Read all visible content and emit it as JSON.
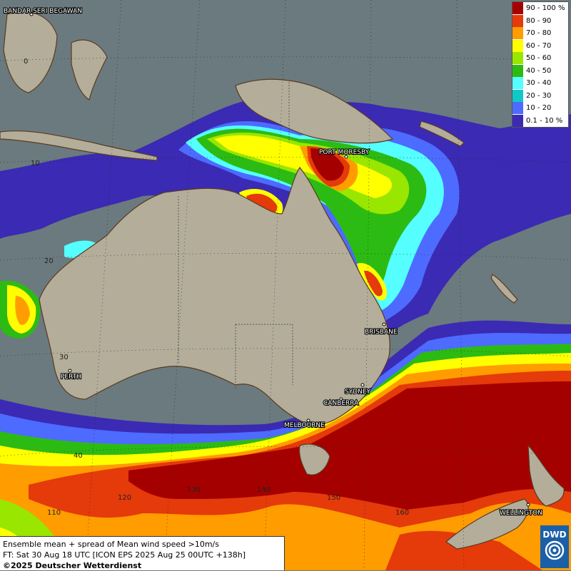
{
  "cities": [
    {
      "name": "BANDAR SERI BEGAWAN"
    },
    {
      "name": "PORT MORESBY"
    },
    {
      "name": "BRISBANE"
    },
    {
      "name": "SYDNEY"
    },
    {
      "name": "CANBERRA"
    },
    {
      "name": "MELBOURNE"
    },
    {
      "name": "PERTH"
    },
    {
      "name": "WELLINGTON"
    }
  ],
  "lat_labels": [
    "0",
    "10",
    "20",
    "30",
    "40"
  ],
  "lon_labels": [
    "110",
    "120",
    "130",
    "140",
    "150",
    "160"
  ],
  "legend": {
    "items": [
      {
        "label": "90 - 100 %",
        "color": "#a50000"
      },
      {
        "label": "80 - 90",
        "color": "#e53a0a"
      },
      {
        "label": "70 - 80",
        "color": "#ff9c00"
      },
      {
        "label": "60 - 70",
        "color": "#ffff00"
      },
      {
        "label": "50 - 60",
        "color": "#99e600"
      },
      {
        "label": "40 - 50",
        "color": "#2cbb13"
      },
      {
        "label": "30 - 40",
        "color": "#55ffff"
      },
      {
        "label": "20 - 30",
        "color": "#10c8c8"
      },
      {
        "label": "10 - 20",
        "color": "#4d6bff"
      },
      {
        "label": "0.1 - 10 %",
        "color": "#3b2ab4"
      }
    ]
  },
  "info": {
    "line1": "Ensemble mean + spread of Mean wind speed >10m/s",
    "line2": "FT: Sat 30 Aug 18 UTC [ICON EPS 2025 Aug 25 00UTC +138h]",
    "line3": "©2025 Deutscher Wetterdienst"
  },
  "logo_text": "DWD"
}
